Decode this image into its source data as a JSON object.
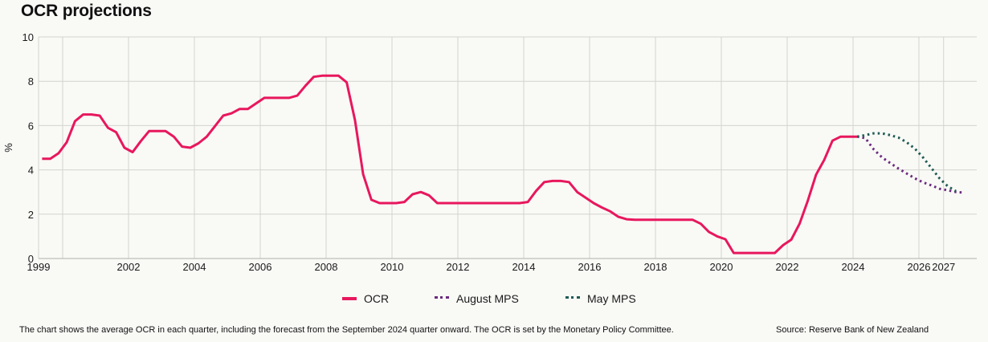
{
  "title": "OCR projections",
  "colors": {
    "ocr": "#e8175d",
    "august_mps": "#6b2a7e",
    "may_mps": "#1f5c54",
    "grid": "#d3d3cf",
    "background": "#f9f9f6"
  },
  "legend": [
    {
      "label": "OCR",
      "style": "solid",
      "color": "#e8175d"
    },
    {
      "label": "August MPS",
      "style": "dotted",
      "color": "#6b2a7e"
    },
    {
      "label": "May MPS",
      "style": "dotted",
      "color": "#1f5c54"
    }
  ],
  "footnote": "The chart shows the average OCR in each quarter, including the forecast from the September 2024 quarter onward. The OCR is set by the Monetary Policy Committee.",
  "source": "Source: Reserve Bank of New Zealand",
  "chart_data": {
    "type": "line",
    "title": "OCR projections",
    "xlabel": "",
    "ylabel": "%",
    "ylim": [
      0,
      10
    ],
    "xlim": [
      1999.27,
      2027.2
    ],
    "yticks": [
      0,
      2,
      4,
      6,
      8,
      10
    ],
    "xticks": [
      {
        "label": "1999",
        "value": 1999.27
      },
      {
        "label": "2002",
        "value": 2002
      },
      {
        "label": "2004",
        "value": 2004
      },
      {
        "label": "2006",
        "value": 2006
      },
      {
        "label": "2008",
        "value": 2008
      },
      {
        "label": "2010",
        "value": 2010
      },
      {
        "label": "2012",
        "value": 2012
      },
      {
        "label": "2014",
        "value": 2014
      },
      {
        "label": "2016",
        "value": 2016
      },
      {
        "label": "2018",
        "value": 2018
      },
      {
        "label": "2020",
        "value": 2020
      },
      {
        "label": "2022",
        "value": 2022
      },
      {
        "label": "2024",
        "value": 2024
      },
      {
        "label": "2026",
        "value": 2026
      },
      {
        "label": "2027",
        "value": 2026.75
      }
    ],
    "xgrid": [
      2000,
      2002,
      2004,
      2006,
      2008,
      2010,
      2012,
      2014,
      2016,
      2018,
      2020,
      2022,
      2024,
      2026,
      2026.75
    ],
    "grid": true,
    "legend_position": "bottom-center",
    "series": [
      {
        "name": "OCR",
        "style": "solid",
        "x_start": 1999.375,
        "x_step": 0.25,
        "values": [
          4.5,
          4.5,
          4.75,
          5.25,
          6.2,
          6.5,
          6.5,
          6.45,
          5.9,
          5.7,
          5.0,
          4.8,
          5.3,
          5.75,
          5.75,
          5.75,
          5.5,
          5.05,
          5.0,
          5.2,
          5.5,
          5.97,
          6.45,
          6.55,
          6.75,
          6.75,
          7.0,
          7.25,
          7.25,
          7.25,
          7.25,
          7.35,
          7.8,
          8.2,
          8.25,
          8.25,
          8.25,
          7.95,
          6.25,
          3.8,
          2.65,
          2.5,
          2.5,
          2.5,
          2.55,
          2.9,
          3.0,
          2.85,
          2.5,
          2.5,
          2.5,
          2.5,
          2.5,
          2.5,
          2.5,
          2.5,
          2.5,
          2.5,
          2.5,
          2.55,
          3.05,
          3.45,
          3.5,
          3.5,
          3.45,
          3.0,
          2.75,
          2.5,
          2.3,
          2.13,
          1.88,
          1.77,
          1.75,
          1.75,
          1.75,
          1.75,
          1.75,
          1.75,
          1.75,
          1.75,
          1.57,
          1.2,
          1.0,
          0.87,
          0.25,
          0.25,
          0.25,
          0.25,
          0.25,
          0.25,
          0.6,
          0.85,
          1.57,
          2.6,
          3.78,
          4.45,
          5.32,
          5.5,
          5.5,
          5.5
        ]
      },
      {
        "name": "August MPS",
        "style": "dotted",
        "x_start": 2024.125,
        "x_step": 0.25,
        "values": [
          5.5,
          5.43,
          4.93,
          4.57,
          4.31,
          4.06,
          3.84,
          3.62,
          3.44,
          3.3,
          3.15,
          3.08,
          3.0,
          2.97
        ]
      },
      {
        "name": "May MPS",
        "style": "dotted",
        "x_start": 2024.125,
        "x_step": 0.25,
        "values": [
          5.5,
          5.57,
          5.65,
          5.65,
          5.57,
          5.46,
          5.25,
          4.96,
          4.56,
          4.09,
          3.62,
          3.26,
          3.04
        ]
      }
    ]
  }
}
